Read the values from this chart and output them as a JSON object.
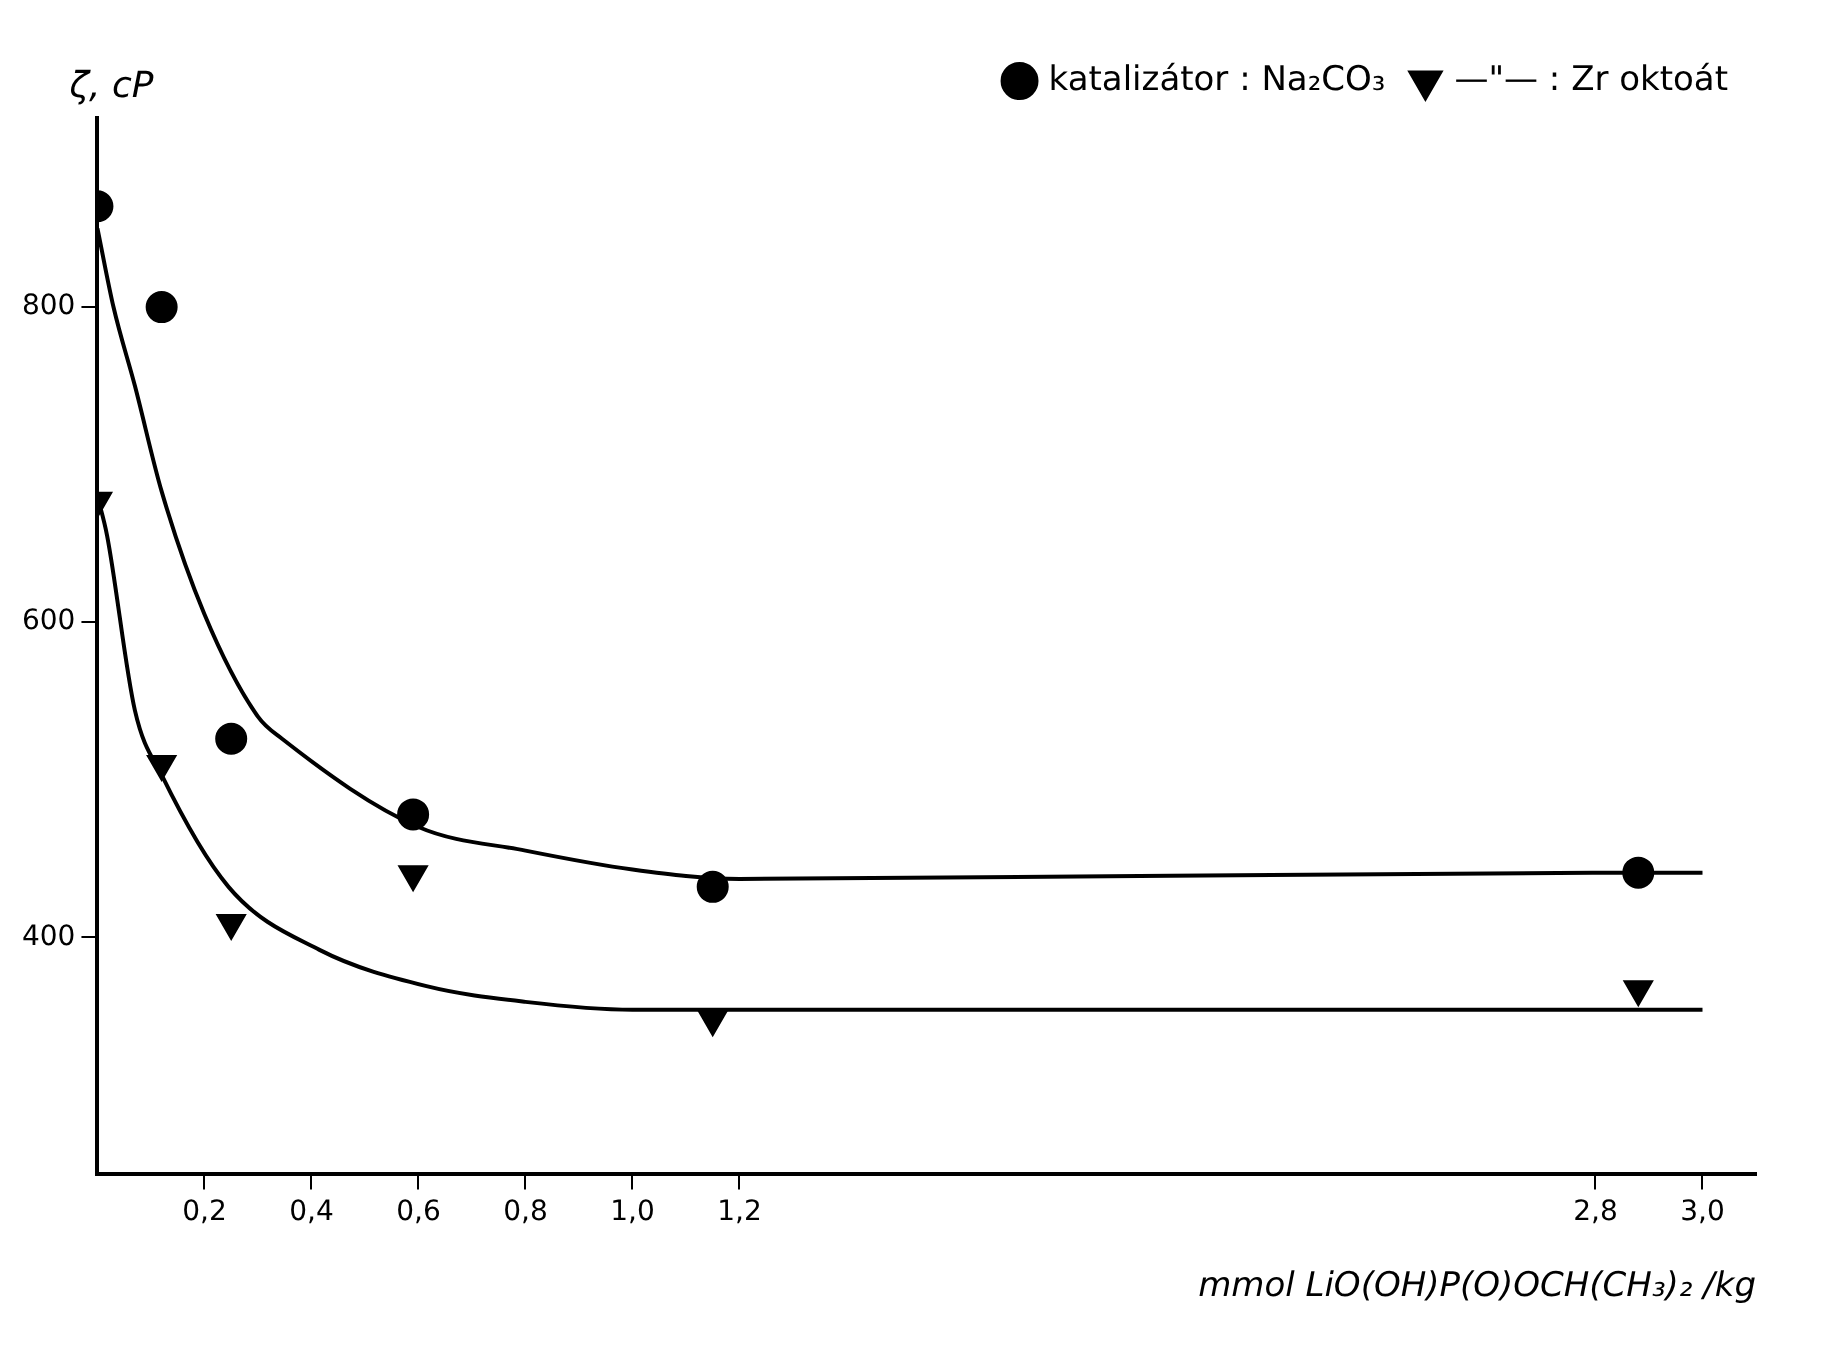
{
  "chart_data": {
    "type": "scatter",
    "xlabel": "mmol LiO(OH)P(O)OCH(CH₃)₂ /kg",
    "ylabel": "ζ, cP",
    "xlim": [
      0,
      3.1
    ],
    "xticks": [
      {
        "value": 0.2,
        "label": "0,2"
      },
      {
        "value": 0.4,
        "label": "0,4"
      },
      {
        "value": 0.6,
        "label": "0,6"
      },
      {
        "value": 0.8,
        "label": "0,8"
      },
      {
        "value": 1.0,
        "label": "1,0"
      },
      {
        "value": 1.2,
        "label": "1,2"
      },
      {
        "value": 2.8,
        "label": "2,8"
      },
      {
        "value": 3.0,
        "label": "3,0"
      }
    ],
    "ylim": [
      250,
      920
    ],
    "yticks": [
      400,
      600,
      800
    ],
    "grid": false,
    "legend": "top right",
    "series": [
      {
        "name": "katalizátor : Na₂CO₃",
        "marker": "circle",
        "color": "#000000",
        "x": [
          0,
          0.12,
          0.25,
          0.59,
          1.15,
          2.88
        ],
        "values": [
          864,
          800,
          526,
          478,
          432,
          441
        ]
      },
      {
        "name": "—\"— : Zr oktoát",
        "marker": "triangle",
        "color": "#000000",
        "x": [
          0,
          0.12,
          0.25,
          0.59,
          1.15,
          2.88
        ],
        "values": [
          677,
          510,
          409,
          440,
          348,
          367
        ]
      },
      {
        "type": "line",
        "marker": "none",
        "line_style": "solid",
        "color": "#000000",
        "x": [
          0,
          0.03,
          0.07,
          0.12,
          0.2,
          0.3,
          0.345,
          0.6,
          0.8,
          1.0,
          1.2,
          2.8,
          3.0
        ],
        "values": [
          850,
          800,
          750,
          683,
          605,
          540,
          526,
          470,
          455,
          443,
          437,
          441,
          441
        ]
      },
      {
        "type": "line",
        "marker": "none",
        "line_style": "solid",
        "color": "#000000",
        "x": [
          0,
          0.018,
          0.07,
          0.12,
          0.245,
          0.415,
          0.615,
          0.8,
          1.0,
          1.2,
          2.8,
          3.0
        ],
        "values": [
          680,
          655,
          544,
          503,
          432,
          392,
          369,
          359,
          354,
          354,
          354,
          354
        ]
      }
    ]
  }
}
